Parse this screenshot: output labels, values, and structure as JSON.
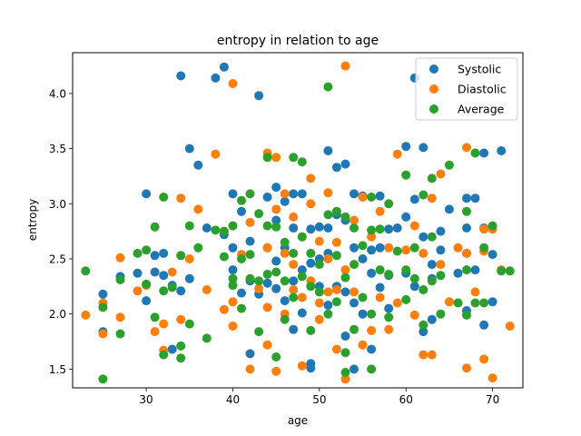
{
  "chart_data": {
    "type": "scatter",
    "title": "entropy in relation to age",
    "xlabel": "age",
    "ylabel": "entropy",
    "xlim": [
      21.5,
      73.5
    ],
    "ylim": [
      1.33,
      4.37
    ],
    "xticks": [
      30,
      40,
      50,
      60,
      70
    ],
    "yticks": [
      1.5,
      2.0,
      2.5,
      3.0,
      3.5,
      4.0
    ],
    "xtick_labels": [
      "30",
      "40",
      "50",
      "60",
      "70"
    ],
    "ytick_labels": [
      "1.5",
      "2.0",
      "2.5",
      "3.0",
      "3.5",
      "4.0"
    ],
    "grid": false,
    "legend_position": "top-right",
    "series": [
      {
        "name": "Systolic",
        "color": "#1f77b4",
        "points": [
          [
            25,
            2.18
          ],
          [
            25,
            1.84
          ],
          [
            27,
            2.34
          ],
          [
            29,
            2.37
          ],
          [
            30,
            3.09
          ],
          [
            30,
            2.12
          ],
          [
            31,
            2.53
          ],
          [
            31,
            2.38
          ],
          [
            32,
            2.55
          ],
          [
            32,
            2.35
          ],
          [
            33,
            2.26
          ],
          [
            33,
            1.68
          ],
          [
            34,
            4.16
          ],
          [
            34,
            2.21
          ],
          [
            35,
            3.5
          ],
          [
            35,
            2.32
          ],
          [
            36,
            3.35
          ],
          [
            37,
            2.78
          ],
          [
            38,
            4.14
          ],
          [
            39,
            4.24
          ],
          [
            39,
            2.72
          ],
          [
            40,
            3.09
          ],
          [
            40,
            2.6
          ],
          [
            40,
            2.4
          ],
          [
            41,
            2.93
          ],
          [
            41,
            2.19
          ],
          [
            42,
            2.66
          ],
          [
            42,
            2.3
          ],
          [
            42,
            1.64
          ],
          [
            43,
            3.98
          ],
          [
            43,
            2.18
          ],
          [
            44,
            3.06
          ],
          [
            44,
            2.6
          ],
          [
            44,
            2.28
          ],
          [
            45,
            3.15
          ],
          [
            45,
            2.85
          ],
          [
            45,
            2.48
          ],
          [
            45,
            2.23
          ],
          [
            46,
            3.02
          ],
          [
            46,
            2.6
          ],
          [
            46,
            2.12
          ],
          [
            47,
            3.09
          ],
          [
            47,
            2.78
          ],
          [
            47,
            2.3
          ],
          [
            47,
            1.86
          ],
          [
            48,
            3.09
          ],
          [
            48,
            2.4
          ],
          [
            48,
            2.01
          ],
          [
            49,
            2.77
          ],
          [
            49,
            2.46
          ],
          [
            49,
            1.55
          ],
          [
            49,
            1.51
          ],
          [
            50,
            2.79
          ],
          [
            50,
            2.5
          ],
          [
            50,
            2.25
          ],
          [
            51,
            3.48
          ],
          [
            51,
            2.78
          ],
          [
            51,
            2.55
          ],
          [
            51,
            2.08
          ],
          [
            52,
            3.33
          ],
          [
            52,
            2.9
          ],
          [
            52,
            2.25
          ],
          [
            53,
            3.36
          ],
          [
            53,
            2.85
          ],
          [
            53,
            2.2
          ],
          [
            53,
            1.8
          ],
          [
            54,
            3.09
          ],
          [
            54,
            2.6
          ],
          [
            54,
            2.1
          ],
          [
            54,
            1.5
          ],
          [
            55,
            3.07
          ],
          [
            55,
            2.5
          ],
          [
            55,
            2.0
          ],
          [
            56,
            2.58
          ],
          [
            56,
            2.37
          ],
          [
            56,
            1.68
          ],
          [
            57,
            3.07
          ],
          [
            57,
            2.6
          ],
          [
            57,
            2.24
          ],
          [
            58,
            2.77
          ],
          [
            58,
            2.35
          ],
          [
            58,
            2.05
          ],
          [
            59,
            2.78
          ],
          [
            60,
            3.52
          ],
          [
            60,
            2.88
          ],
          [
            60,
            2.37
          ],
          [
            61,
            4.14
          ],
          [
            61,
            3.04
          ],
          [
            61,
            2.25
          ],
          [
            62,
            3.51
          ],
          [
            62,
            2.7
          ],
          [
            62,
            1.84
          ],
          [
            63,
            2.45
          ],
          [
            63,
            2.32
          ],
          [
            63,
            1.95
          ],
          [
            64,
            2.58
          ],
          [
            64,
            2.75
          ],
          [
            65,
            2.95
          ],
          [
            66,
            2.37
          ],
          [
            67,
            3.05
          ],
          [
            67,
            2.78
          ],
          [
            67,
            2.55
          ],
          [
            67,
            2.03
          ],
          [
            68,
            3.05
          ],
          [
            68,
            2.4
          ],
          [
            69,
            3.46
          ],
          [
            69,
            2.78
          ],
          [
            69,
            1.9
          ],
          [
            70,
            2.54
          ],
          [
            70,
            2.11
          ],
          [
            71,
            3.48
          ]
        ]
      },
      {
        "name": "Diastolic",
        "color": "#ff7f0e",
        "points": [
          [
            23,
            1.99
          ],
          [
            25,
            1.82
          ],
          [
            25,
            2.1
          ],
          [
            27,
            2.51
          ],
          [
            27,
            1.97
          ],
          [
            29,
            2.21
          ],
          [
            30,
            2.26
          ],
          [
            31,
            1.84
          ],
          [
            32,
            1.67
          ],
          [
            32,
            1.91
          ],
          [
            33,
            2.38
          ],
          [
            34,
            3.05
          ],
          [
            34,
            1.95
          ],
          [
            35,
            2.5
          ],
          [
            36,
            2.95
          ],
          [
            37,
            2.22
          ],
          [
            38,
            3.45
          ],
          [
            39,
            2.04
          ],
          [
            40,
            4.09
          ],
          [
            40,
            2.11
          ],
          [
            40,
            1.89
          ],
          [
            41,
            2.54
          ],
          [
            42,
            2.83
          ],
          [
            42,
            1.5
          ],
          [
            43,
            2.23
          ],
          [
            44,
            3.46
          ],
          [
            44,
            2.6
          ],
          [
            44,
            2.06
          ],
          [
            44,
            1.72
          ],
          [
            45,
            3.42
          ],
          [
            45,
            2.95
          ],
          [
            45,
            1.48
          ],
          [
            46,
            3.09
          ],
          [
            46,
            2.55
          ],
          [
            46,
            2.0
          ],
          [
            47,
            2.88
          ],
          [
            47,
            2.45
          ],
          [
            47,
            2.22
          ],
          [
            48,
            2.7
          ],
          [
            48,
            2.15
          ],
          [
            48,
            1.53
          ],
          [
            49,
            3.23
          ],
          [
            49,
            3.0
          ],
          [
            49,
            2.3
          ],
          [
            50,
            2.66
          ],
          [
            50,
            2.1
          ],
          [
            50,
            1.95
          ],
          [
            51,
            3.1
          ],
          [
            51,
            2.5
          ],
          [
            51,
            2.2
          ],
          [
            52,
            2.65
          ],
          [
            52,
            2.22
          ],
          [
            52,
            1.68
          ],
          [
            53,
            4.25
          ],
          [
            53,
            2.4
          ],
          [
            53,
            1.41
          ],
          [
            54,
            2.85
          ],
          [
            54,
            2.2
          ],
          [
            55,
            3.06
          ],
          [
            55,
            1.72
          ],
          [
            56,
            2.7
          ],
          [
            56,
            1.85
          ],
          [
            57,
            2.93
          ],
          [
            57,
            2.15
          ],
          [
            58,
            2.6
          ],
          [
            58,
            1.86
          ],
          [
            59,
            3.45
          ],
          [
            59,
            2.1
          ],
          [
            60,
            2.58
          ],
          [
            61,
            2.8
          ],
          [
            61,
            1.99
          ],
          [
            62,
            2.55
          ],
          [
            62,
            1.63
          ],
          [
            63,
            3.05
          ],
          [
            63,
            1.63
          ],
          [
            64,
            3.27
          ],
          [
            64,
            2.45
          ],
          [
            65,
            2.11
          ],
          [
            66,
            2.6
          ],
          [
            67,
            3.51
          ],
          [
            67,
            2.55
          ],
          [
            67,
            1.51
          ],
          [
            68,
            2.2
          ],
          [
            69,
            2.77
          ],
          [
            69,
            2.57
          ],
          [
            69,
            1.59
          ],
          [
            70,
            2.77
          ],
          [
            70,
            1.42
          ],
          [
            71,
            2.4
          ],
          [
            72,
            1.89
          ]
        ]
      },
      {
        "name": "Average",
        "color": "#2ca02c",
        "points": [
          [
            23,
            2.39
          ],
          [
            25,
            1.41
          ],
          [
            25,
            2.06
          ],
          [
            27,
            1.82
          ],
          [
            27,
            2.31
          ],
          [
            29,
            2.55
          ],
          [
            30,
            2.58
          ],
          [
            30,
            2.27
          ],
          [
            31,
            2.79
          ],
          [
            31,
            1.97
          ],
          [
            32,
            3.06
          ],
          [
            32,
            2.21
          ],
          [
            32,
            1.63
          ],
          [
            33,
            2.24
          ],
          [
            34,
            2.53
          ],
          [
            34,
            1.71
          ],
          [
            34,
            1.6
          ],
          [
            35,
            2.8
          ],
          [
            35,
            1.91
          ],
          [
            36,
            2.6
          ],
          [
            37,
            1.78
          ],
          [
            38,
            2.76
          ],
          [
            39,
            2.75
          ],
          [
            39,
            2.52
          ],
          [
            40,
            2.8
          ],
          [
            40,
            2.32
          ],
          [
            40,
            2.26
          ],
          [
            41,
            3.03
          ],
          [
            41,
            2.5
          ],
          [
            41,
            2.05
          ],
          [
            42,
            3.09
          ],
          [
            42,
            2.54
          ],
          [
            42,
            2.32
          ],
          [
            43,
            2.91
          ],
          [
            43,
            2.3
          ],
          [
            43,
            1.84
          ],
          [
            44,
            3.42
          ],
          [
            44,
            2.8
          ],
          [
            44,
            2.36
          ],
          [
            45,
            2.79
          ],
          [
            45,
            2.38
          ],
          [
            45,
            1.61
          ],
          [
            46,
            2.65
          ],
          [
            46,
            2.3
          ],
          [
            46,
            1.95
          ],
          [
            47,
            3.42
          ],
          [
            47,
            2.55
          ],
          [
            47,
            2.15
          ],
          [
            48,
            3.38
          ],
          [
            48,
            2.7
          ],
          [
            48,
            2.34
          ],
          [
            49,
            2.55
          ],
          [
            49,
            2.25
          ],
          [
            49,
            1.85
          ],
          [
            50,
            2.45
          ],
          [
            50,
            2.2
          ],
          [
            51,
            4.06
          ],
          [
            51,
            2.9
          ],
          [
            51,
            2.0
          ],
          [
            52,
            2.93
          ],
          [
            52,
            2.53
          ],
          [
            52,
            2.11
          ],
          [
            53,
            2.88
          ],
          [
            53,
            2.33
          ],
          [
            53,
            1.65
          ],
          [
            53,
            1.47
          ],
          [
            54,
            2.78
          ],
          [
            54,
            2.45
          ],
          [
            54,
            1.86
          ],
          [
            55,
            2.62
          ],
          [
            55,
            2.15
          ],
          [
            56,
            3.06
          ],
          [
            56,
            2.76
          ],
          [
            56,
            2.0
          ],
          [
            56,
            1.5
          ],
          [
            57,
            2.77
          ],
          [
            57,
            2.4
          ],
          [
            58,
            3.0
          ],
          [
            58,
            2.36
          ],
          [
            58,
            1.97
          ],
          [
            59,
            2.57
          ],
          [
            60,
            3.26
          ],
          [
            60,
            2.4
          ],
          [
            60,
            2.13
          ],
          [
            61,
            2.6
          ],
          [
            61,
            2.32
          ],
          [
            62,
            3.08
          ],
          [
            62,
            2.22
          ],
          [
            62,
            1.9
          ],
          [
            63,
            3.23
          ],
          [
            63,
            2.7
          ],
          [
            63,
            2.3
          ],
          [
            64,
            2.35
          ],
          [
            64,
            2.0
          ],
          [
            65,
            3.35
          ],
          [
            66,
            2.1
          ],
          [
            67,
            2.93
          ],
          [
            67,
            2.4
          ],
          [
            67,
            1.99
          ],
          [
            68,
            3.46
          ],
          [
            68,
            2.1
          ],
          [
            69,
            2.6
          ],
          [
            69,
            2.1
          ],
          [
            70,
            2.8
          ],
          [
            71,
            2.39
          ],
          [
            72,
            2.39
          ]
        ]
      }
    ]
  }
}
